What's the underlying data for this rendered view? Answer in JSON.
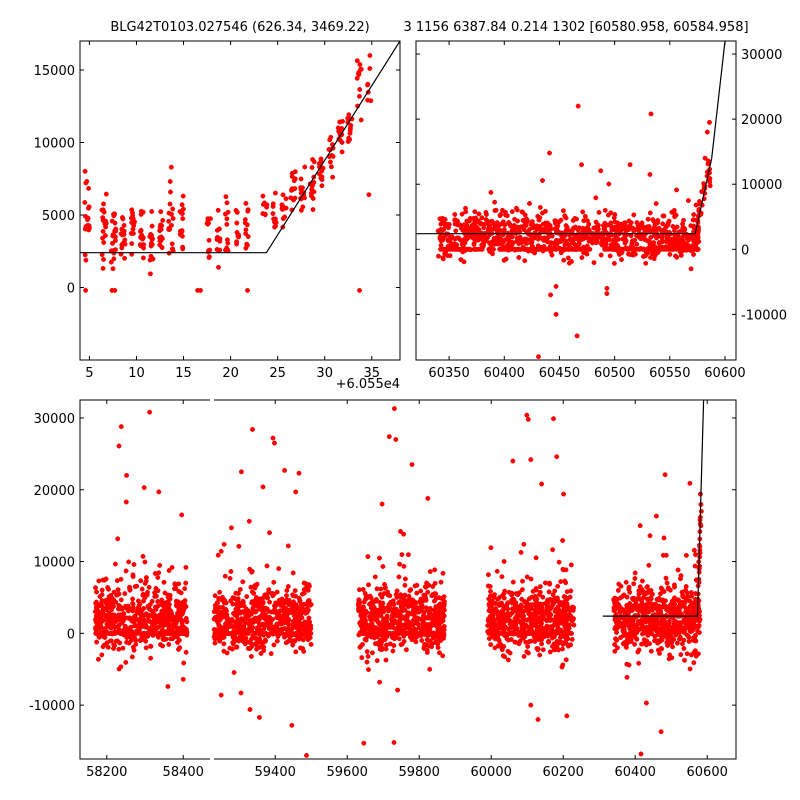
{
  "figure": {
    "title_left": "BLG42T0103.027546 (626.34, 3469.22)",
    "title_right": "3 1156 6387.84 0.214 1302 [60580.958, 60584.958]"
  },
  "colors": {
    "points": "#ff0000",
    "model": "#000000"
  },
  "chart_data": [
    {
      "type": "scatter",
      "panel": "top-left",
      "xlim": [
        4,
        38
      ],
      "ylim": [
        -5000,
        17000
      ],
      "xticks": [
        5,
        10,
        15,
        20,
        25,
        30,
        35
      ],
      "yticks": [
        0,
        5000,
        10000,
        15000
      ],
      "x_offset_label": "+6.055e4",
      "y_axis_side": "left",
      "model": {
        "x": [
          4,
          23.8,
          38
        ],
        "y": [
          2400,
          2400,
          17000
        ]
      },
      "points": {
        "x_range": [
          4.5,
          35
        ],
        "clusters": [
          {
            "x": [
              4.5,
              5.0
            ],
            "y_mean": 5000,
            "y_sd": 1600,
            "n": 18
          },
          {
            "x": [
              6.3,
              6.8
            ],
            "y_mean": 4000,
            "y_sd": 1300,
            "n": 18
          },
          {
            "x": [
              7.3,
              7.8
            ],
            "y_mean": 3600,
            "y_sd": 1300,
            "n": 22
          },
          {
            "x": [
              8.3,
              8.8
            ],
            "y_mean": 3800,
            "y_sd": 1100,
            "n": 16
          },
          {
            "x": [
              9.4,
              9.8
            ],
            "y_mean": 4000,
            "y_sd": 1000,
            "n": 14
          },
          {
            "x": [
              10.4,
              10.8
            ],
            "y_mean": 3600,
            "y_sd": 1000,
            "n": 16
          },
          {
            "x": [
              11.4,
              11.8
            ],
            "y_mean": 3300,
            "y_sd": 1000,
            "n": 16
          },
          {
            "x": [
              12.4,
              12.8
            ],
            "y_mean": 3600,
            "y_sd": 1000,
            "n": 14
          },
          {
            "x": [
              13.4,
              13.9
            ],
            "y_mean": 4200,
            "y_sd": 1400,
            "n": 18
          },
          {
            "x": [
              14.6,
              15.0
            ],
            "y_mean": 4600,
            "y_sd": 1300,
            "n": 14
          },
          {
            "x": [
              17.5,
              17.9
            ],
            "y_mean": 3500,
            "y_sd": 1300,
            "n": 12
          },
          {
            "x": [
              18.5,
              18.9
            ],
            "y_mean": 3400,
            "y_sd": 1000,
            "n": 10
          },
          {
            "x": [
              19.4,
              19.8
            ],
            "y_mean": 4000,
            "y_sd": 1200,
            "n": 12
          },
          {
            "x": [
              20.5,
              20.9
            ],
            "y_mean": 3900,
            "y_sd": 1000,
            "n": 10
          },
          {
            "x": [
              21.5,
              21.9
            ],
            "y_mean": 4500,
            "y_sd": 1100,
            "n": 12
          },
          {
            "x": [
              23.4,
              23.9
            ],
            "y_mean": 5200,
            "y_sd": 800,
            "n": 8
          },
          {
            "x": [
              24.4,
              24.9
            ],
            "y_mean": 4800,
            "y_sd": 1000,
            "n": 10
          },
          {
            "x": [
              25.4,
              25.9
            ],
            "y_mean": 5200,
            "y_sd": 900,
            "n": 12
          },
          {
            "x": [
              26.4,
              26.9
            ],
            "y_mean": 6200,
            "y_sd": 800,
            "n": 14
          },
          {
            "x": [
              27.4,
              27.9
            ],
            "y_mean": 6600,
            "y_sd": 800,
            "n": 14
          },
          {
            "x": [
              28.4,
              28.9
            ],
            "y_mean": 7300,
            "y_sd": 800,
            "n": 14
          },
          {
            "x": [
              29.4,
              29.9
            ],
            "y_mean": 8400,
            "y_sd": 800,
            "n": 14
          },
          {
            "x": [
              30.4,
              30.9
            ],
            "y_mean": 9200,
            "y_sd": 700,
            "n": 12
          },
          {
            "x": [
              31.4,
              31.9
            ],
            "y_mean": 10600,
            "y_sd": 900,
            "n": 14
          },
          {
            "x": [
              32.4,
              32.9
            ],
            "y_mean": 11400,
            "y_sd": 800,
            "n": 12
          },
          {
            "x": [
              33.4,
              33.9
            ],
            "y_mean": 14000,
            "y_sd": 1200,
            "n": 12
          },
          {
            "x": [
              34.4,
              34.9
            ],
            "y_mean": 13500,
            "y_sd": 1400,
            "n": 6
          }
        ],
        "explicit": [
          [
            4.6,
            -200
          ],
          [
            7.4,
            -200
          ],
          [
            7.7,
            -200
          ],
          [
            16.5,
            -200
          ],
          [
            16.8,
            -200
          ],
          [
            21.8,
            -200
          ],
          [
            33.7,
            -200
          ],
          [
            13.7,
            8300
          ],
          [
            34.8,
            16000
          ],
          [
            34.7,
            6400
          ]
        ]
      }
    },
    {
      "type": "scatter",
      "panel": "top-right",
      "xlim": [
        60320,
        60610
      ],
      "ylim": [
        -17000,
        32000
      ],
      "xticks": [
        60350,
        60400,
        60450,
        60500,
        60550,
        60600
      ],
      "yticks": [
        -10000,
        0,
        10000,
        20000,
        30000
      ],
      "y_axis_side": "right",
      "model": {
        "x": [
          60320,
          60573,
          60588,
          60600
        ],
        "y": [
          2400,
          2400,
          14000,
          32000
        ]
      },
      "points": {
        "x_range": [
          60340,
          60588
        ],
        "base_y_mean": 2200,
        "base_y_sd": 1600,
        "n": 1100,
        "explicit": [
          [
            60467,
            22000
          ],
          [
            60533,
            20800
          ],
          [
            60441,
            14800
          ],
          [
            60470,
            13000
          ],
          [
            60514,
            13000
          ],
          [
            60532,
            11500
          ],
          [
            60431,
            -16500
          ],
          [
            60466,
            -13300
          ],
          [
            60447,
            -10000
          ],
          [
            60493,
            -6000
          ],
          [
            60493,
            -6800
          ],
          [
            60442,
            -7000
          ],
          [
            60447,
            -5700
          ],
          [
            60584,
            18000
          ],
          [
            60586,
            19500
          ],
          [
            60582,
            14000
          ]
        ]
      }
    },
    {
      "type": "scatter",
      "panel": "bottom",
      "xlim": [
        58130,
        60680
      ],
      "ylim": [
        -17500,
        32500
      ],
      "xticks": [
        58200,
        58400,
        59400,
        59600,
        59800,
        60000,
        60200,
        60400,
        60600
      ],
      "yticks": [
        -10000,
        0,
        10000,
        20000,
        30000
      ],
      "y_axis_side": "left",
      "axis_break_at": 58470,
      "model": {
        "x": [
          60310,
          60573,
          60590
        ],
        "y": [
          2400,
          2400,
          32500
        ]
      },
      "points": {
        "seasons": [
          [
            58170,
            58410
          ],
          [
            59230,
            59500
          ],
          [
            59630,
            59870
          ],
          [
            59990,
            60230
          ],
          [
            60340,
            60580
          ]
        ],
        "base_y_mean": 2000,
        "base_y_sd": 2200,
        "n_per_season": 650,
        "explicit": [
          [
            58312,
            30800
          ],
          [
            58238,
            28800
          ],
          [
            58232,
            26100
          ],
          [
            58252,
            22000
          ],
          [
            58251,
            18300
          ],
          [
            58298,
            20300
          ],
          [
            58336,
            19700
          ],
          [
            58396,
            16500
          ],
          [
            58360,
            -7400
          ],
          [
            58400,
            -6400
          ],
          [
            59337,
            28400
          ],
          [
            59394,
            27200
          ],
          [
            59398,
            26500
          ],
          [
            59426,
            22700
          ],
          [
            59466,
            22300
          ],
          [
            59306,
            22500
          ],
          [
            59457,
            19700
          ],
          [
            59366,
            20400
          ],
          [
            59258,
            12400
          ],
          [
            59328,
            15600
          ],
          [
            59250,
            -8600
          ],
          [
            59305,
            -8300
          ],
          [
            59330,
            -10600
          ],
          [
            59356,
            -11700
          ],
          [
            59446,
            -12800
          ],
          [
            59487,
            -17000
          ],
          [
            59731,
            31300
          ],
          [
            59735,
            27000
          ],
          [
            59717,
            27400
          ],
          [
            59780,
            23500
          ],
          [
            59824,
            18800
          ],
          [
            59697,
            18000
          ],
          [
            59748,
            14200
          ],
          [
            59690,
            -6800
          ],
          [
            59740,
            -7900
          ],
          [
            59730,
            -15200
          ],
          [
            59646,
            -15300
          ],
          [
            60099,
            30400
          ],
          [
            60103,
            29800
          ],
          [
            60173,
            29900
          ],
          [
            60182,
            24600
          ],
          [
            60110,
            24200
          ],
          [
            60060,
            24000
          ],
          [
            60140,
            20800
          ],
          [
            60201,
            19400
          ],
          [
            60130,
            -12000
          ],
          [
            60210,
            -11500
          ],
          [
            60110,
            -10000
          ],
          [
            60483,
            22100
          ],
          [
            60552,
            20900
          ],
          [
            60414,
            15000
          ],
          [
            60441,
            13600
          ],
          [
            60480,
            13300
          ],
          [
            60416,
            -16800
          ],
          [
            60472,
            -13700
          ],
          [
            60431,
            -9700
          ],
          [
            60581,
            19400
          ],
          [
            60584,
            17000
          ],
          [
            60580,
            15800
          ]
        ]
      }
    }
  ]
}
